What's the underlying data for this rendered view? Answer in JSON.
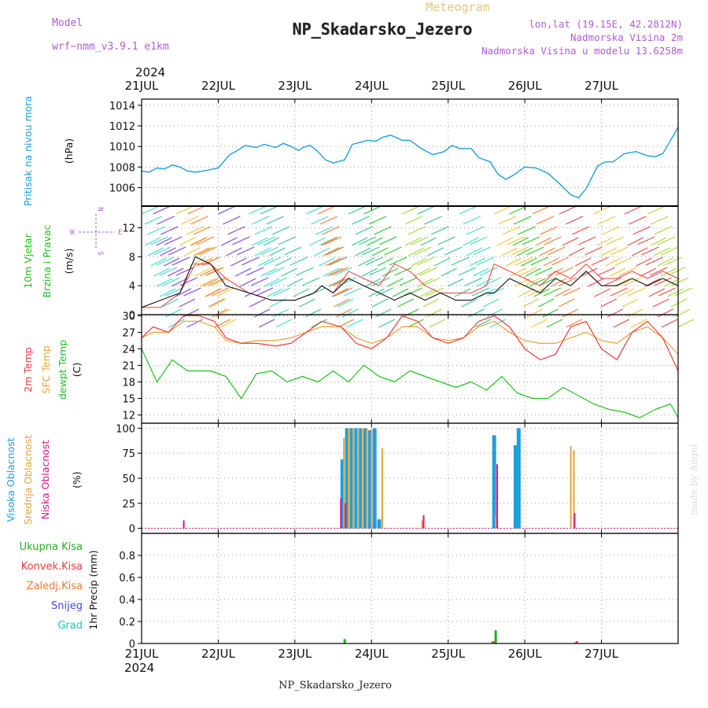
{
  "header": {
    "meteogram": "Meteogram",
    "model_label": "Model",
    "model_name": "wrf−nmm_v3.9.1  e1km",
    "station": "NP_Skadarsko_Jezero",
    "lonlat": "lon,lat (19.15E, 42.2812N)",
    "altitude": "Nadmorska Visina 2m",
    "model_altitude": "Nadmorska Visina u modelu 13.6258m",
    "footer_station": "NP_Skadarsko_Jezero",
    "watermark": "made by Angel",
    "year_top": "2024",
    "year_bottom": "2024"
  },
  "colors": {
    "pressure": "#1e9fe0",
    "temp2m": "#ee3b3b",
    "sfc": "#e6a23c",
    "dewpt": "#22c022",
    "high_cloud": "#1e9fe0",
    "mid_cloud": "#e6a23c",
    "low_cloud": "#dd1188",
    "total_precip": "#22b022",
    "conv_precip": "#ee3b3b",
    "frozen": "#f07830",
    "snow": "#4444ee",
    "graupel": "#22c0c0",
    "header_purple": "#b05ad8",
    "meteogram_title": "#e6c680"
  },
  "chart_data": [
    {
      "type": "line",
      "panel": "pressure",
      "ylabel_left": "Pritisak na nivou mora",
      "ylabel_unit": "(hPa)",
      "ylim": [
        1004.2,
        1014.6
      ],
      "yticks": [
        1006,
        1008,
        1010,
        1012,
        1014
      ],
      "x_ticks": [
        "21JUL",
        "22JUL",
        "23JUL",
        "24JUL",
        "25JUL",
        "26JUL",
        "27JUL"
      ],
      "grid": true,
      "series": [
        {
          "name": "Pritisak na nivou mora",
          "x": [
            0,
            0.1,
            0.2,
            0.3,
            0.4,
            0.5,
            0.6,
            0.7,
            0.8,
            1.0,
            1.15,
            1.25,
            1.35,
            1.5,
            1.6,
            1.75,
            1.85,
            1.95,
            2.05,
            2.1,
            2.2,
            2.3,
            2.4,
            2.5,
            2.65,
            2.75,
            2.85,
            2.95,
            3.05,
            3.15,
            3.25,
            3.4,
            3.5,
            3.65,
            3.8,
            3.95,
            4.05,
            4.15,
            4.3,
            4.4,
            4.55,
            4.65,
            4.75,
            4.85,
            5.0,
            5.15,
            5.3,
            5.45,
            5.6,
            5.7,
            5.8,
            5.95,
            6.05,
            6.15,
            6.3,
            6.45,
            6.6,
            6.7,
            6.8,
            6.95,
            7.0
          ],
          "values": [
            1007.6,
            1007.5,
            1007.9,
            1007.8,
            1008.2,
            1008.0,
            1007.6,
            1007.5,
            1007.6,
            1007.9,
            1009.2,
            1009.6,
            1010.1,
            1009.9,
            1010.2,
            1009.9,
            1010.3,
            1010.0,
            1009.6,
            1009.9,
            1010.1,
            1009.5,
            1008.7,
            1008.4,
            1008.7,
            1010.2,
            1010.4,
            1010.6,
            1010.5,
            1010.9,
            1011.1,
            1010.6,
            1010.6,
            1009.8,
            1009.2,
            1009.5,
            1010.1,
            1009.8,
            1009.8,
            1008.9,
            1008.5,
            1007.3,
            1006.8,
            1007.2,
            1008.0,
            1007.9,
            1007.4,
            1006.4,
            1005.3,
            1005.0,
            1005.9,
            1008.1,
            1008.5,
            1008.5,
            1009.3,
            1009.5,
            1009.1,
            1009.0,
            1009.3,
            1011.2,
            1011.9
          ]
        }
      ]
    },
    {
      "type": "line",
      "panel": "wind",
      "ylabel_left_1": "10m Vjetar",
      "ylabel_left_2": "Brzina i Pravac",
      "ylabel_unit": "(m/s)",
      "compass_n": "N",
      "compass_s": "S",
      "compass_w": "W",
      "compass_e": "E",
      "ylim": [
        0,
        15
      ],
      "yticks": [
        0,
        4,
        8,
        12
      ],
      "series": [
        {
          "name": "speed",
          "x": [
            0.0,
            0.25,
            0.5,
            0.7,
            0.9,
            1.1,
            1.4,
            1.7,
            2.0,
            2.25,
            2.35,
            2.5,
            2.7,
            2.9,
            3.1,
            3.3,
            3.5,
            3.7,
            3.9,
            4.1,
            4.3,
            4.5,
            4.6,
            4.8,
            5.0,
            5.2,
            5.4,
            5.6,
            5.8,
            6.0,
            6.2,
            6.4,
            6.6,
            6.8,
            7.0
          ],
          "values": [
            1,
            2,
            3,
            8,
            7,
            4,
            3,
            2,
            2,
            3,
            4,
            3,
            5,
            4,
            3,
            2,
            3,
            2,
            3,
            2,
            2,
            3,
            3,
            5,
            4,
            3,
            5,
            4,
            6,
            4,
            4,
            5,
            4,
            5,
            4
          ]
        },
        {
          "name": "gust",
          "x": [
            0.0,
            0.25,
            0.5,
            0.7,
            0.9,
            1.1,
            1.4,
            1.7,
            2.0,
            2.25,
            2.35,
            2.5,
            2.7,
            2.9,
            3.1,
            3.3,
            3.5,
            3.7,
            3.9,
            4.1,
            4.3,
            4.5,
            4.6,
            4.8,
            5.0,
            5.2,
            5.4,
            5.6,
            5.8,
            6.0,
            6.2,
            6.4,
            6.6,
            6.8,
            7.0
          ],
          "values": [
            1,
            1,
            3,
            7,
            7,
            5,
            3,
            2,
            2,
            3,
            4,
            3,
            6,
            5,
            4,
            7,
            6,
            4,
            3,
            3,
            3,
            4,
            7,
            6,
            5,
            4,
            6,
            5,
            7,
            5,
            5,
            6,
            5,
            6,
            5
          ]
        }
      ]
    },
    {
      "type": "line",
      "panel": "temperature",
      "ylabel_t2m": "2m Temp",
      "ylabel_sfc": "SFC Temp",
      "ylabel_dew": "dewpt Temp",
      "ylabel_unit": "(C)",
      "ylim": [
        10.5,
        30.2
      ],
      "yticks": [
        12,
        15,
        18,
        21,
        24,
        27,
        30
      ],
      "series": [
        {
          "name": "2m Temp",
          "x": [
            0,
            0.15,
            0.35,
            0.55,
            0.75,
            0.95,
            1.1,
            1.3,
            1.5,
            1.75,
            1.95,
            2.15,
            2.35,
            2.6,
            2.8,
            3.0,
            3.2,
            3.4,
            3.6,
            3.8,
            4.0,
            4.2,
            4.4,
            4.6,
            4.8,
            5.0,
            5.2,
            5.4,
            5.6,
            5.8,
            6.0,
            6.2,
            6.4,
            6.6,
            6.8,
            7.0
          ],
          "values": [
            26,
            28,
            27,
            30,
            30,
            29,
            26,
            25,
            25,
            24.5,
            25,
            27,
            29,
            28,
            25,
            24,
            26,
            30,
            29,
            26,
            25,
            26,
            29,
            30,
            28,
            24,
            22,
            23,
            28,
            29,
            24,
            22,
            27,
            29,
            26,
            20
          ]
        },
        {
          "name": "SFC Temp",
          "x": [
            0,
            0.15,
            0.35,
            0.55,
            0.75,
            0.95,
            1.1,
            1.3,
            1.5,
            1.75,
            1.95,
            2.15,
            2.35,
            2.6,
            2.8,
            3.0,
            3.2,
            3.4,
            3.6,
            3.8,
            4.0,
            4.2,
            4.4,
            4.6,
            4.8,
            5.0,
            5.2,
            5.4,
            5.6,
            5.8,
            6.0,
            6.2,
            6.4,
            6.6,
            6.8,
            7.0
          ],
          "values": [
            26,
            27,
            27,
            29,
            29,
            28,
            25.5,
            25,
            25.5,
            25.5,
            26,
            27,
            28,
            28,
            26,
            25,
            26,
            28,
            28,
            26,
            25.5,
            26,
            28,
            29,
            27,
            25.5,
            25,
            25,
            26,
            27,
            25.5,
            25,
            27,
            28,
            26,
            23
          ]
        },
        {
          "name": "dewpt Temp",
          "x": [
            0,
            0.2,
            0.4,
            0.6,
            0.9,
            1.1,
            1.3,
            1.5,
            1.7,
            1.9,
            2.1,
            2.3,
            2.5,
            2.7,
            2.9,
            3.1,
            3.3,
            3.5,
            3.7,
            3.9,
            4.1,
            4.3,
            4.5,
            4.7,
            4.9,
            5.1,
            5.3,
            5.5,
            5.7,
            5.9,
            6.1,
            6.3,
            6.5,
            6.7,
            6.9,
            7.0
          ],
          "values": [
            24,
            18,
            22,
            20,
            20,
            19,
            15,
            19.5,
            20,
            18,
            19,
            18,
            20,
            18,
            21,
            19,
            18,
            20,
            19,
            18,
            17,
            18,
            16.5,
            19,
            16,
            15,
            15,
            17,
            15.5,
            14,
            13,
            12.5,
            11.5,
            13,
            14,
            11.5
          ]
        }
      ]
    },
    {
      "type": "bar",
      "panel": "clouds",
      "ylabel_high": "Visoka Oblacnost",
      "ylabel_mid": "Srednja Oblacnost",
      "ylabel_low": "Niska Oblacnost",
      "ylabel_unit": "(%)",
      "ylim": [
        -5,
        105
      ],
      "yticks": [
        0,
        25,
        50,
        75,
        100
      ],
      "series": [
        {
          "name": "Visoka Oblacnost",
          "x": [
            2.62,
            2.68,
            2.74,
            2.8,
            2.86,
            2.92,
            2.98,
            3.04,
            3.1,
            3.16,
            4.6,
            4.88,
            4.92,
            5.58,
            5.62
          ],
          "values": [
            69,
            100,
            100,
            100,
            100,
            100,
            98,
            100,
            9,
            0,
            93,
            83,
            100,
            0,
            0
          ]
        },
        {
          "name": "Srednja Oblacnost",
          "x": [
            2.64,
            2.7,
            2.76,
            2.82,
            2.88,
            2.94,
            3.0,
            3.14,
            3.66,
            4.62,
            5.6,
            5.64
          ],
          "values": [
            90,
            99,
            100,
            99,
            100,
            100,
            99,
            80,
            8,
            13,
            82,
            78
          ]
        },
        {
          "name": "Niska Oblacnost",
          "x": [
            0.55,
            2.6,
            2.66,
            3.68,
            4.64,
            5.65
          ],
          "values": [
            8,
            30,
            25,
            13,
            64,
            15
          ]
        }
      ]
    },
    {
      "type": "bar",
      "panel": "precip",
      "labels": {
        "total": "Ukupna  Kisa",
        "conv": "Konvek.Kisa",
        "frozen": "Zaledj.Kisa",
        "snow": "Snijeg",
        "graupel": "Grad"
      },
      "ylabel_unit": "1hr Precip (mm)",
      "ylim": [
        0,
        1.0
      ],
      "yticks": [
        0,
        0.2,
        0.4,
        0.6,
        0.8
      ],
      "series": [
        {
          "name": "Ukupna  Kisa",
          "x": [
            2.65,
            4.58,
            4.62,
            5.66
          ],
          "values": [
            0.04,
            0.02,
            0.12,
            0.01
          ]
        },
        {
          "name": "Konvek.Kisa",
          "x": [
            4.6,
            5.68
          ],
          "values": [
            0.02,
            0.02
          ]
        }
      ]
    }
  ]
}
